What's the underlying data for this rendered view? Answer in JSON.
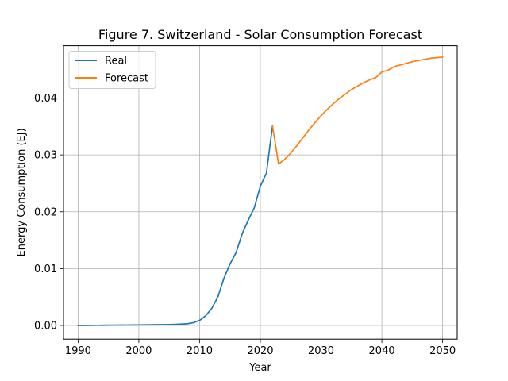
{
  "chart_data": {
    "type": "line",
    "title": "Figure 7. Switzerland - Solar Consumption Forecast",
    "xlabel": "Year",
    "ylabel": "Energy Consumption (EJ)",
    "xlim": [
      1987.6,
      2052.4
    ],
    "ylim": [
      -0.0024,
      0.0492
    ],
    "xticks": [
      1990,
      2000,
      2010,
      2020,
      2030,
      2040,
      2050
    ],
    "xtick_labels": [
      "1990",
      "2000",
      "2010",
      "2020",
      "2030",
      "2040",
      "2050"
    ],
    "yticks": [
      0.0,
      0.01,
      0.02,
      0.03,
      0.04
    ],
    "ytick_labels": [
      "0.00",
      "0.01",
      "0.02",
      "0.03",
      "0.04"
    ],
    "grid": true,
    "legend_position": "upper-left",
    "series": [
      {
        "name": "Real",
        "color": "#1f77b4",
        "x": [
          1990,
          1991,
          1992,
          1993,
          1994,
          1995,
          1996,
          1997,
          1998,
          1999,
          2000,
          2001,
          2002,
          2003,
          2004,
          2005,
          2006,
          2007,
          2008,
          2009,
          2010,
          2011,
          2012,
          2013,
          2014,
          2015,
          2016,
          2017,
          2018,
          2019,
          2020,
          2021,
          2022
        ],
        "y": [
          0.0,
          0.0,
          2e-05,
          3e-05,
          4e-05,
          5e-05,
          6e-05,
          7e-05,
          8e-05,
          9e-05,
          0.0001,
          0.00011,
          0.00012,
          0.00014,
          0.00015,
          0.00017,
          0.0002,
          0.00025,
          0.0003,
          0.0005,
          0.0009,
          0.0017,
          0.003,
          0.005,
          0.0083,
          0.0108,
          0.0128,
          0.0161,
          0.0185,
          0.0207,
          0.0245,
          0.0268,
          0.0351
        ]
      },
      {
        "name": "Forecast",
        "color": "#ff7f0e",
        "x": [
          2022,
          2023,
          2024,
          2025,
          2026,
          2027,
          2028,
          2029,
          2030,
          2031,
          2032,
          2033,
          2034,
          2035,
          2036,
          2037,
          2038,
          2039,
          2040,
          2041,
          2042,
          2043,
          2044,
          2045,
          2046,
          2047,
          2048,
          2049,
          2050
        ],
        "y": [
          0.0351,
          0.0284,
          0.0292,
          0.0303,
          0.0316,
          0.033,
          0.0344,
          0.0357,
          0.0369,
          0.038,
          0.039,
          0.0399,
          0.0407,
          0.0415,
          0.0421,
          0.0427,
          0.0432,
          0.0436,
          0.0446,
          0.0449,
          0.0455,
          0.0458,
          0.0461,
          0.0464,
          0.0466,
          0.0468,
          0.047,
          0.0471,
          0.0472
        ]
      }
    ]
  }
}
